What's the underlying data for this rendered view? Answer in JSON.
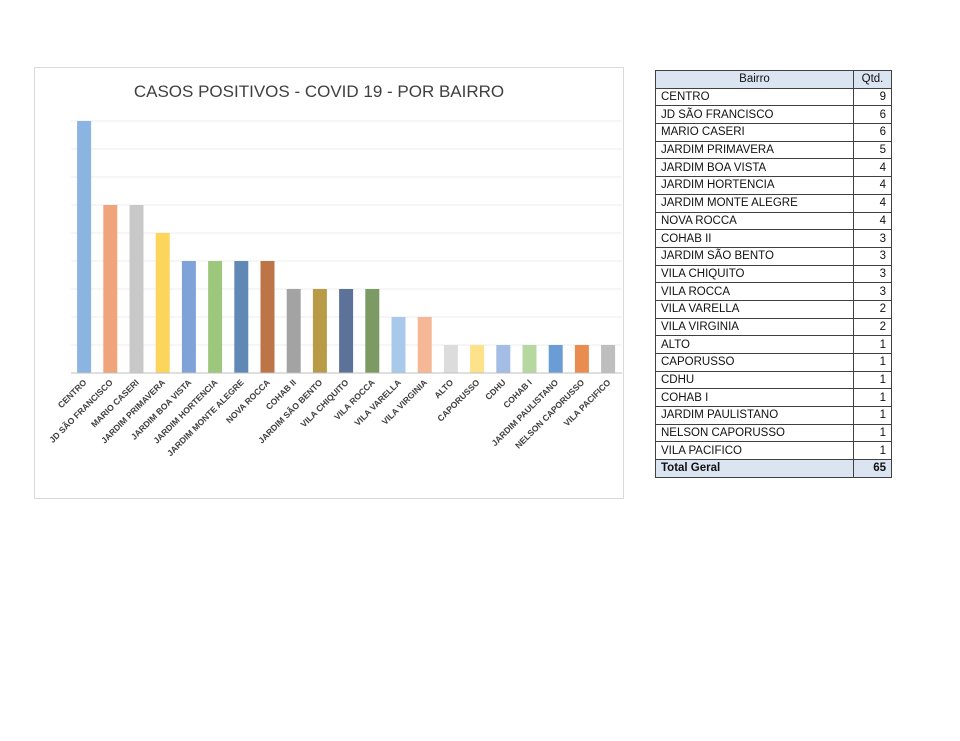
{
  "chart_data": {
    "type": "bar",
    "title": "CASOS POSITIVOS - COVID 19 - POR BAIRRO",
    "xlabel": "",
    "ylabel": "",
    "ylim": [
      0,
      9
    ],
    "grid": true,
    "legend": "none",
    "categories": [
      "CENTRO",
      "JD SÃO FRANCISCO",
      "MARIO CASERI",
      "JARDIM PRIMAVERA",
      "JARDIM BOA VISTA",
      "JARDIM HORTENCIA",
      "JARDIM MONTE ALEGRE",
      "NOVA ROCCA",
      "COHAB II",
      "JARDIM SÃO BENTO",
      "VILA CHIQUITO",
      "VILA ROCCA",
      "VILA VARELLA",
      "VILA VIRGINIA",
      "ALTO",
      "CAPORUSSO",
      "CDHU",
      "COHAB I",
      "JARDIM PAULISTANO",
      "NELSON CAPORUSSO",
      "VILA PACIFICO"
    ],
    "values": [
      9,
      6,
      6,
      5,
      4,
      4,
      4,
      4,
      3,
      3,
      3,
      3,
      2,
      2,
      1,
      1,
      1,
      1,
      1,
      1,
      1
    ],
    "colors": [
      "#8cb4e2",
      "#f0a47c",
      "#c8c8c8",
      "#fdd55a",
      "#7fa3d8",
      "#9ec77e",
      "#5f88b4",
      "#bd7447",
      "#a3a3a3",
      "#b99a47",
      "#5d7299",
      "#7c9a63",
      "#a8c9ea",
      "#f5b795",
      "#dcdcdc",
      "#fde28a",
      "#a3bde4",
      "#b6d8a0",
      "#6a9dd6",
      "#e88c4f",
      "#bebebe"
    ]
  },
  "table": {
    "header": {
      "bairro": "Bairro",
      "qtd": "Qtd."
    },
    "rows": [
      {
        "bairro": "CENTRO",
        "qtd": "9"
      },
      {
        "bairro": "JD SÃO FRANCISCO",
        "qtd": "6"
      },
      {
        "bairro": "MARIO CASERI",
        "qtd": "6"
      },
      {
        "bairro": "JARDIM PRIMAVERA",
        "qtd": "5"
      },
      {
        "bairro": "JARDIM BOA VISTA",
        "qtd": "4"
      },
      {
        "bairro": "JARDIM HORTENCIA",
        "qtd": "4"
      },
      {
        "bairro": "JARDIM MONTE ALEGRE",
        "qtd": "4"
      },
      {
        "bairro": "NOVA ROCCA",
        "qtd": "4"
      },
      {
        "bairro": "COHAB II",
        "qtd": "3"
      },
      {
        "bairro": "JARDIM SÃO BENTO",
        "qtd": "3"
      },
      {
        "bairro": "VILA CHIQUITO",
        "qtd": "3"
      },
      {
        "bairro": "VILA ROCCA",
        "qtd": "3"
      },
      {
        "bairro": "VILA VARELLA",
        "qtd": "2"
      },
      {
        "bairro": "VILA VIRGINIA",
        "qtd": "2"
      },
      {
        "bairro": "ALTO",
        "qtd": "1"
      },
      {
        "bairro": "CAPORUSSO",
        "qtd": "1"
      },
      {
        "bairro": "CDHU",
        "qtd": "1"
      },
      {
        "bairro": "COHAB I",
        "qtd": "1"
      },
      {
        "bairro": "JARDIM PAULISTANO",
        "qtd": "1"
      },
      {
        "bairro": "NELSON CAPORUSSO",
        "qtd": "1"
      },
      {
        "bairro": "VILA PACIFICO",
        "qtd": "1"
      }
    ],
    "total": {
      "label": "Total Geral",
      "value": "65"
    }
  }
}
